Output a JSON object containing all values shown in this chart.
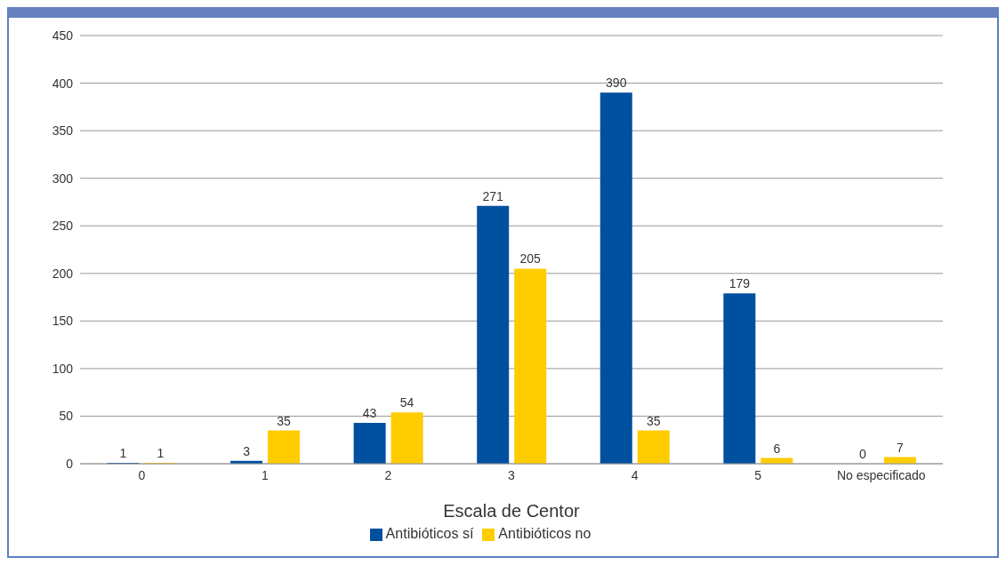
{
  "chart_data": {
    "type": "bar",
    "xlabel": "Escala de Centor",
    "categories": [
      "0",
      "1",
      "2",
      "3",
      "4",
      "5",
      "No especificado"
    ],
    "series": [
      {
        "name": "Antibióticos sí",
        "color": "#0050a0",
        "values": [
          1,
          3,
          43,
          271,
          390,
          179,
          0
        ]
      },
      {
        "name": "Antibióticos no",
        "color": "#ffcc00",
        "values": [
          1,
          35,
          54,
          205,
          35,
          6,
          7
        ]
      }
    ],
    "ylim": [
      0,
      450
    ],
    "yticks": [
      0,
      50,
      100,
      150,
      200,
      250,
      300,
      350,
      400,
      450
    ],
    "grid": "y",
    "legend": "bottom",
    "data_labels": true
  }
}
